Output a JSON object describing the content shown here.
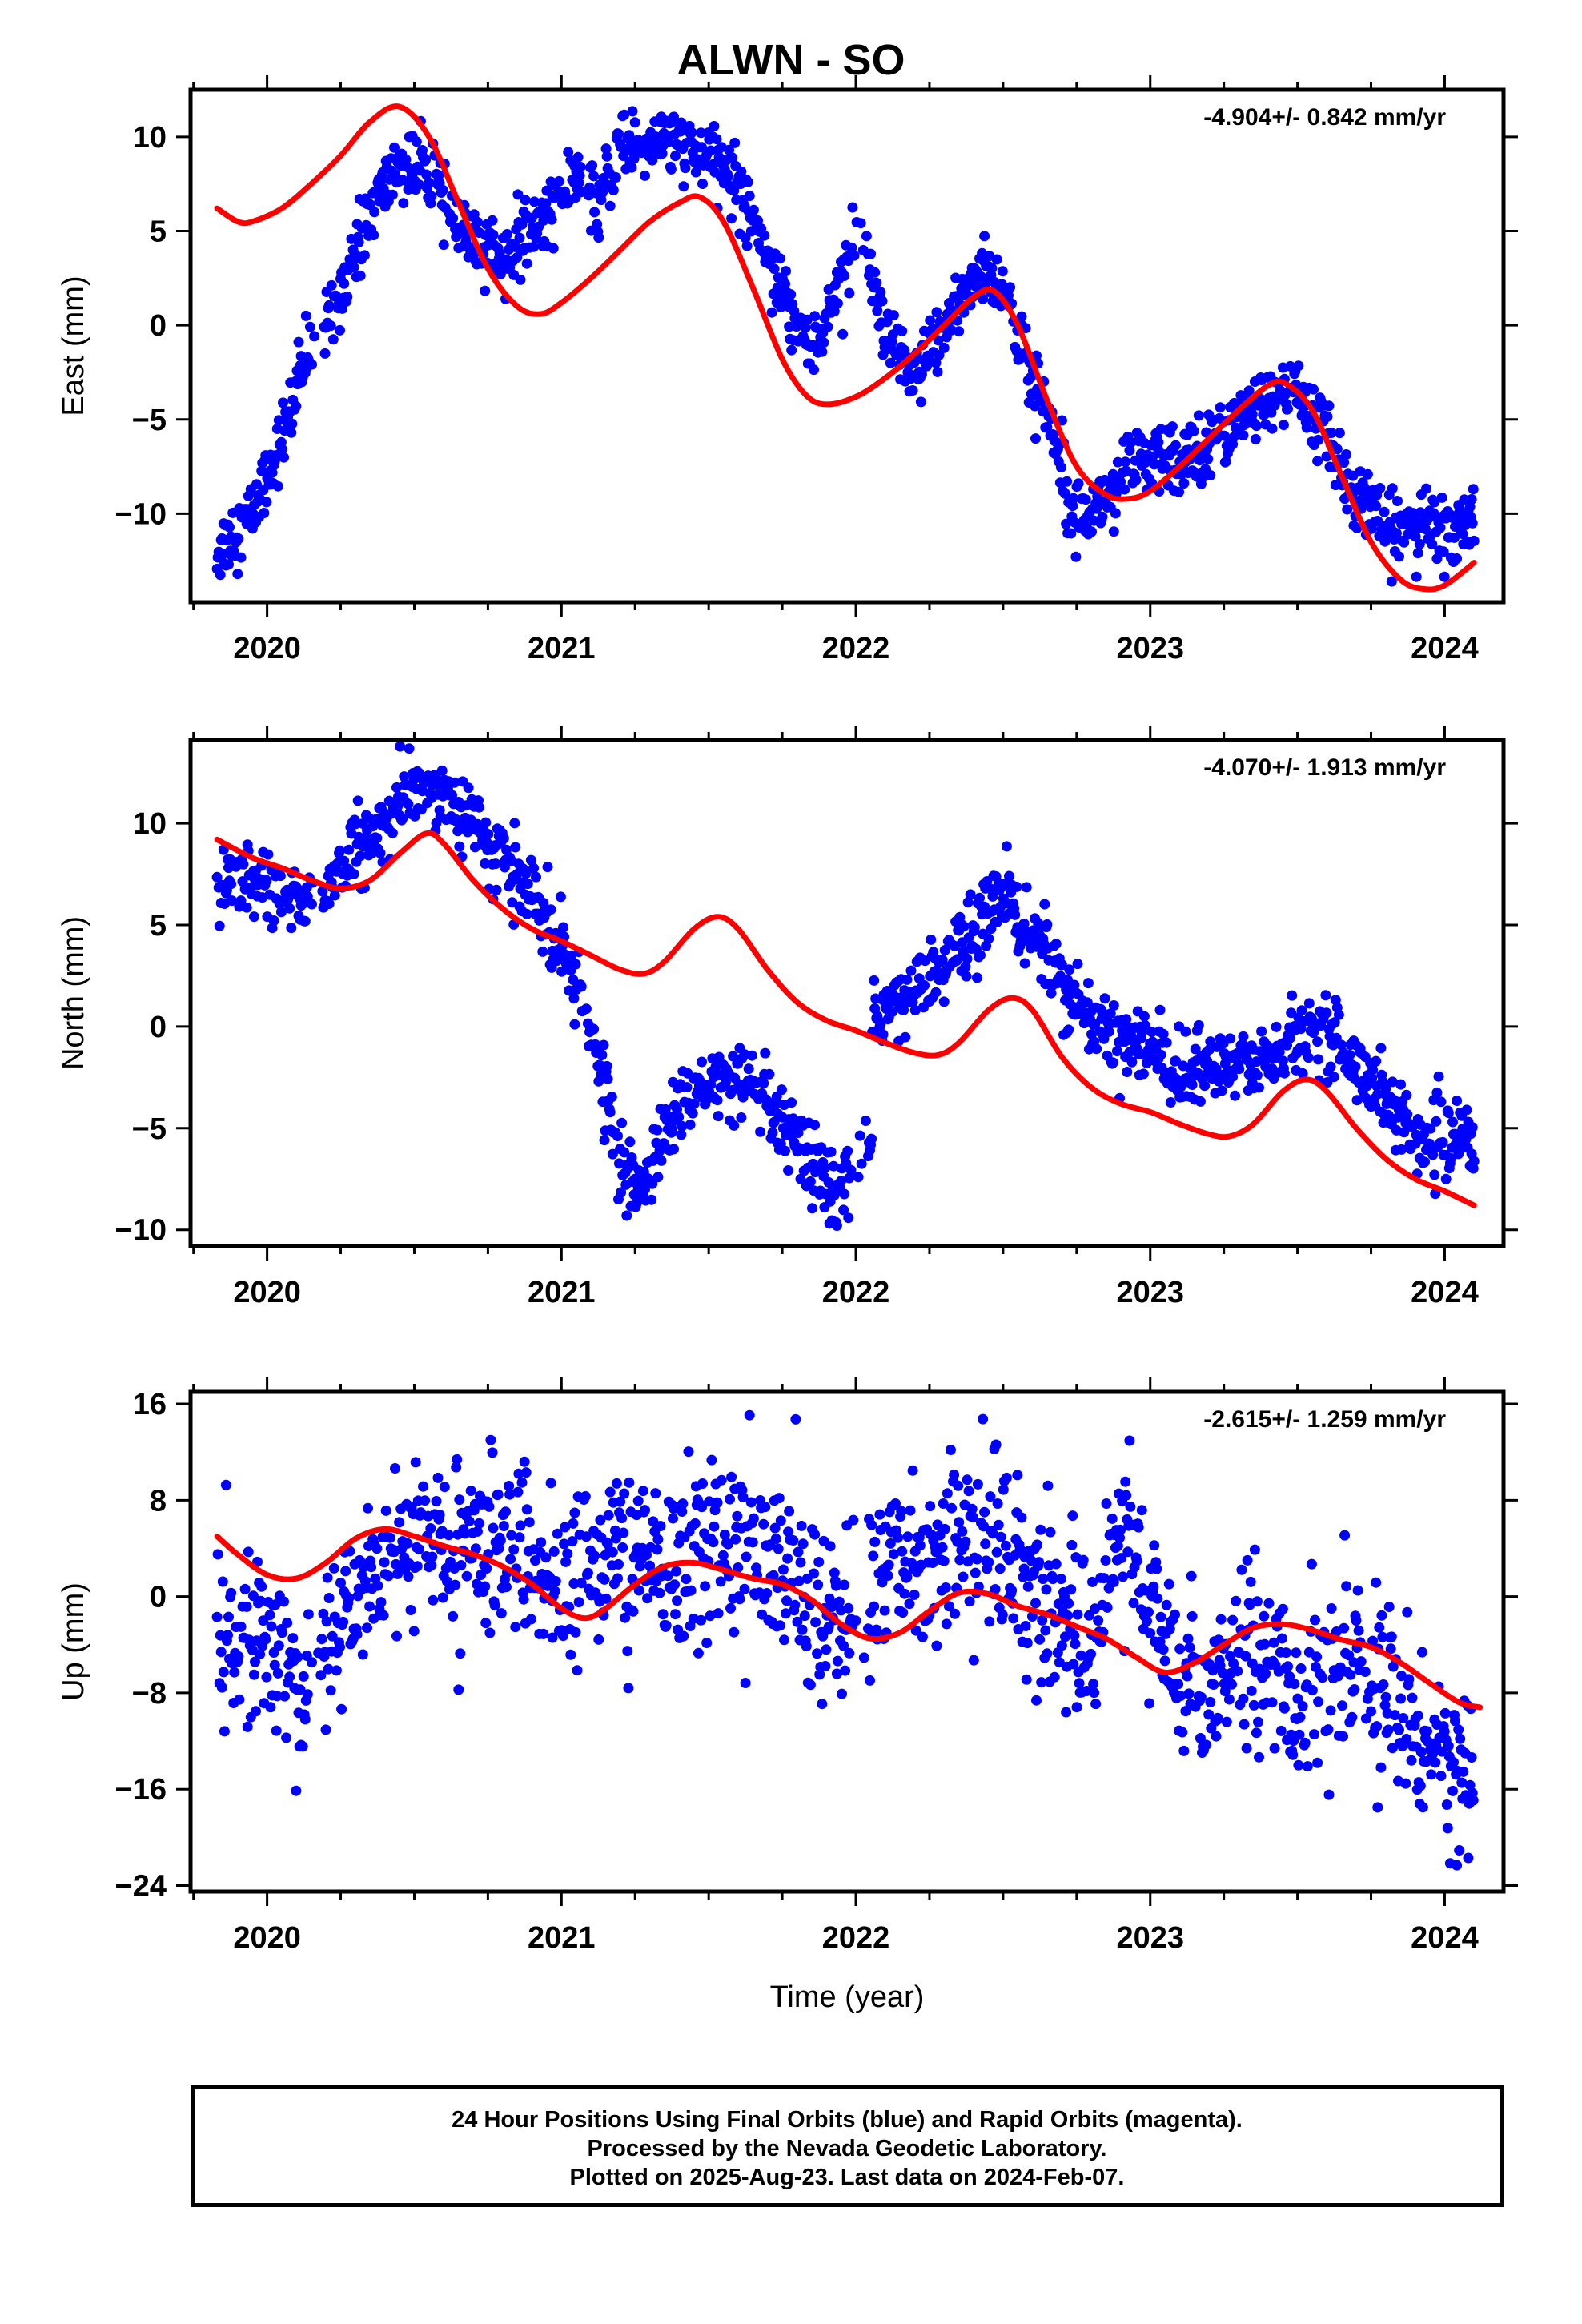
{
  "title": "ALWN - SO",
  "footer": {
    "line1": "24 Hour Positions Using Final Orbits (blue) and Rapid Orbits (magenta).",
    "line2": "Processed by the Nevada Geodetic Laboratory.",
    "line3": "Plotted on 2025-Aug-23. Last data on 2024-Feb-07."
  },
  "colors": {
    "data_points": "#0000ff",
    "fit_line": "#ff0000",
    "frame": "#000000"
  },
  "chart_data": [
    {
      "type": "scatter",
      "panel": "east",
      "ylabel": "East (mm)",
      "xlabel": "",
      "rate_text": "-4.904+/- 0.842 mm/yr",
      "xlim": [
        2019.74,
        2024.2
      ],
      "ylim": [
        -14.7,
        12.5
      ],
      "xticks": [
        2020,
        2021,
        2022,
        2023,
        2024
      ],
      "yticks": [
        10,
        5,
        0,
        -5,
        -10
      ],
      "ytick_labels": [
        "10",
        "5",
        "0",
        "−5",
        "−10"
      ],
      "observed_trend": [
        [
          2019.83,
          -12
        ],
        [
          2019.95,
          -10
        ],
        [
          2020.05,
          -6
        ],
        [
          2020.15,
          -1
        ],
        [
          2020.25,
          2
        ],
        [
          2020.35,
          6
        ],
        [
          2020.45,
          8.5
        ],
        [
          2020.55,
          8
        ],
        [
          2020.62,
          6
        ],
        [
          2020.7,
          4
        ],
        [
          2020.85,
          4
        ],
        [
          2020.95,
          6
        ],
        [
          2021.05,
          8
        ],
        [
          2021.12,
          6
        ],
        [
          2021.2,
          9.5
        ],
        [
          2021.35,
          10
        ],
        [
          2021.45,
          9
        ],
        [
          2021.55,
          8.5
        ],
        [
          2021.65,
          6
        ],
        [
          2021.72,
          3
        ],
        [
          2021.8,
          0
        ],
        [
          2021.88,
          -1
        ],
        [
          2021.95,
          3
        ],
        [
          2022.02,
          5
        ],
        [
          2022.1,
          -1
        ],
        [
          2022.2,
          -3
        ],
        [
          2022.3,
          0
        ],
        [
          2022.38,
          2
        ],
        [
          2022.45,
          3
        ],
        [
          2022.5,
          2
        ],
        [
          2022.6,
          -3
        ],
        [
          2022.68,
          -6
        ],
        [
          2022.73,
          -9
        ],
        [
          2022.8,
          -10
        ],
        [
          2022.9,
          -8
        ],
        [
          2023.0,
          -7
        ],
        [
          2023.1,
          -7.5
        ],
        [
          2023.2,
          -6
        ],
        [
          2023.3,
          -5
        ],
        [
          2023.4,
          -4
        ],
        [
          2023.5,
          -3.5
        ],
        [
          2023.6,
          -6
        ],
        [
          2023.7,
          -9
        ],
        [
          2023.8,
          -11
        ],
        [
          2023.9,
          -10.5
        ],
        [
          2024.0,
          -11
        ],
        [
          2024.1,
          -10
        ]
      ],
      "fit_curve": [
        [
          2019.83,
          6.2
        ],
        [
          2019.9,
          5.5
        ],
        [
          2019.95,
          5.5
        ],
        [
          2020.05,
          6.2
        ],
        [
          2020.15,
          7.5
        ],
        [
          2020.25,
          9
        ],
        [
          2020.35,
          10.8
        ],
        [
          2020.45,
          11.6
        ],
        [
          2020.55,
          10
        ],
        [
          2020.65,
          6.5
        ],
        [
          2020.75,
          3
        ],
        [
          2020.85,
          1
        ],
        [
          2020.93,
          0.6
        ],
        [
          2021.0,
          1.2
        ],
        [
          2021.1,
          2.5
        ],
        [
          2021.2,
          4
        ],
        [
          2021.3,
          5.5
        ],
        [
          2021.4,
          6.5
        ],
        [
          2021.47,
          6.8
        ],
        [
          2021.55,
          5.5
        ],
        [
          2021.65,
          2
        ],
        [
          2021.75,
          -1.8
        ],
        [
          2021.83,
          -3.7
        ],
        [
          2021.9,
          -4.2
        ],
        [
          2022.0,
          -3.8
        ],
        [
          2022.1,
          -2.8
        ],
        [
          2022.2,
          -1.5
        ],
        [
          2022.3,
          0
        ],
        [
          2022.4,
          1.5
        ],
        [
          2022.47,
          1.8
        ],
        [
          2022.55,
          0
        ],
        [
          2022.65,
          -4
        ],
        [
          2022.75,
          -7.5
        ],
        [
          2022.85,
          -9
        ],
        [
          2022.93,
          -9.2
        ],
        [
          2023.0,
          -8.8
        ],
        [
          2023.1,
          -7.5
        ],
        [
          2023.2,
          -6
        ],
        [
          2023.3,
          -4.5
        ],
        [
          2023.4,
          -3.2
        ],
        [
          2023.46,
          -3.1
        ],
        [
          2023.55,
          -4.5
        ],
        [
          2023.65,
          -8
        ],
        [
          2023.75,
          -11.5
        ],
        [
          2023.85,
          -13.5
        ],
        [
          2023.93,
          -14
        ],
        [
          2024.0,
          -13.8
        ],
        [
          2024.1,
          -12.6
        ]
      ]
    },
    {
      "type": "scatter",
      "panel": "north",
      "ylabel": "North (mm)",
      "xlabel": "",
      "rate_text": "-4.070+/- 1.913 mm/yr",
      "xlim": [
        2019.74,
        2024.2
      ],
      "ylim": [
        -10.8,
        14.1
      ],
      "xticks": [
        2020,
        2021,
        2022,
        2023,
        2024
      ],
      "yticks": [
        10,
        5,
        0,
        -5,
        -10
      ],
      "ytick_labels": [
        "10",
        "5",
        "0",
        "−5",
        "−10"
      ],
      "observed_trend": [
        [
          2019.83,
          6
        ],
        [
          2019.9,
          7.5
        ],
        [
          2020.0,
          7
        ],
        [
          2020.1,
          6
        ],
        [
          2020.2,
          7
        ],
        [
          2020.3,
          8.5
        ],
        [
          2020.4,
          10
        ],
        [
          2020.5,
          11.5
        ],
        [
          2020.55,
          12
        ],
        [
          2020.6,
          11.5
        ],
        [
          2020.7,
          10
        ],
        [
          2020.8,
          8
        ],
        [
          2020.9,
          6.5
        ],
        [
          2021.0,
          4
        ],
        [
          2021.05,
          2
        ],
        [
          2021.1,
          0
        ],
        [
          2021.15,
          -3
        ],
        [
          2021.2,
          -7
        ],
        [
          2021.25,
          -8
        ],
        [
          2021.3,
          -7.5
        ],
        [
          2021.35,
          -5
        ],
        [
          2021.4,
          -4
        ],
        [
          2021.5,
          -3
        ],
        [
          2021.6,
          -2.5
        ],
        [
          2021.7,
          -4
        ],
        [
          2021.8,
          -6
        ],
        [
          2021.9,
          -8
        ],
        [
          2021.95,
          -8
        ],
        [
          2022.05,
          -6
        ],
        [
          2022.06,
          1
        ],
        [
          2022.1,
          1
        ],
        [
          2022.2,
          2
        ],
        [
          2022.3,
          3
        ],
        [
          2022.4,
          4.5
        ],
        [
          2022.48,
          6.5
        ],
        [
          2022.52,
          7
        ],
        [
          2022.55,
          4
        ],
        [
          2022.6,
          5
        ],
        [
          2022.7,
          2
        ],
        [
          2022.8,
          0
        ],
        [
          2022.9,
          -0.5
        ],
        [
          2023.0,
          -1
        ],
        [
          2023.1,
          -2.5
        ],
        [
          2023.2,
          -2
        ],
        [
          2023.3,
          -2
        ],
        [
          2023.4,
          -1.5
        ],
        [
          2023.5,
          -0.5
        ],
        [
          2023.6,
          0
        ],
        [
          2023.7,
          -2
        ],
        [
          2023.8,
          -3.5
        ],
        [
          2023.9,
          -5.5
        ],
        [
          2024.0,
          -6
        ],
        [
          2024.05,
          -5
        ],
        [
          2024.1,
          -6
        ]
      ],
      "fit_curve": [
        [
          2019.83,
          9.2
        ],
        [
          2019.95,
          8.3
        ],
        [
          2020.05,
          7.8
        ],
        [
          2020.15,
          7.2
        ],
        [
          2020.25,
          6.8
        ],
        [
          2020.35,
          7.2
        ],
        [
          2020.45,
          8.5
        ],
        [
          2020.54,
          9.5
        ],
        [
          2020.6,
          9
        ],
        [
          2020.7,
          7.2
        ],
        [
          2020.8,
          5.8
        ],
        [
          2020.9,
          4.8
        ],
        [
          2021.0,
          4.2
        ],
        [
          2021.1,
          3.5
        ],
        [
          2021.2,
          2.8
        ],
        [
          2021.28,
          2.6
        ],
        [
          2021.35,
          3.2
        ],
        [
          2021.45,
          4.8
        ],
        [
          2021.53,
          5.4
        ],
        [
          2021.6,
          4.8
        ],
        [
          2021.7,
          2.8
        ],
        [
          2021.8,
          1.2
        ],
        [
          2021.9,
          0.3
        ],
        [
          2022.0,
          -0.2
        ],
        [
          2022.1,
          -0.8
        ],
        [
          2022.2,
          -1.3
        ],
        [
          2022.28,
          -1.4
        ],
        [
          2022.35,
          -0.8
        ],
        [
          2022.45,
          0.8
        ],
        [
          2022.53,
          1.4
        ],
        [
          2022.6,
          0.8
        ],
        [
          2022.7,
          -1.5
        ],
        [
          2022.8,
          -3
        ],
        [
          2022.9,
          -3.8
        ],
        [
          2023.0,
          -4.2
        ],
        [
          2023.1,
          -4.8
        ],
        [
          2023.2,
          -5.3
        ],
        [
          2023.27,
          -5.4
        ],
        [
          2023.35,
          -4.8
        ],
        [
          2023.45,
          -3.2
        ],
        [
          2023.53,
          -2.6
        ],
        [
          2023.6,
          -3.2
        ],
        [
          2023.7,
          -5
        ],
        [
          2023.8,
          -6.5
        ],
        [
          2023.9,
          -7.5
        ],
        [
          2024.0,
          -8.1
        ],
        [
          2024.1,
          -8.8
        ]
      ]
    },
    {
      "type": "scatter",
      "panel": "up",
      "ylabel": "Up (mm)",
      "xlabel": "Time (year)",
      "rate_text": "-2.615+/- 1.259 mm/yr",
      "xlim": [
        2019.74,
        2024.2
      ],
      "ylim": [
        -24.5,
        17
      ],
      "xticks": [
        2020,
        2021,
        2022,
        2023,
        2024
      ],
      "yticks": [
        16,
        8,
        0,
        -8,
        -16,
        -24
      ],
      "ytick_labels": [
        "16",
        "8",
        "0",
        "−8",
        "−16",
        "−24"
      ],
      "observed_trend": [
        [
          2019.83,
          -4
        ],
        [
          2019.9,
          -3
        ],
        [
          2020.0,
          -4
        ],
        [
          2020.1,
          -6
        ],
        [
          2020.2,
          -5
        ],
        [
          2020.3,
          0
        ],
        [
          2020.4,
          4
        ],
        [
          2020.5,
          5
        ],
        [
          2020.6,
          4
        ],
        [
          2020.7,
          5
        ],
        [
          2020.8,
          4
        ],
        [
          2020.9,
          3
        ],
        [
          2021.0,
          0
        ],
        [
          2021.1,
          2
        ],
        [
          2021.2,
          4
        ],
        [
          2021.3,
          2
        ],
        [
          2021.4,
          3
        ],
        [
          2021.5,
          5
        ],
        [
          2021.6,
          4
        ],
        [
          2021.7,
          3
        ],
        [
          2021.8,
          1
        ],
        [
          2021.9,
          -2
        ],
        [
          2022.0,
          -3
        ],
        [
          2022.1,
          2
        ],
        [
          2022.2,
          3
        ],
        [
          2022.3,
          4
        ],
        [
          2022.4,
          5
        ],
        [
          2022.5,
          4
        ],
        [
          2022.6,
          1
        ],
        [
          2022.7,
          -2
        ],
        [
          2022.8,
          -4
        ],
        [
          2022.9,
          6
        ],
        [
          2022.95,
          4
        ],
        [
          2023.0,
          -2
        ],
        [
          2023.1,
          -6
        ],
        [
          2023.2,
          -7
        ],
        [
          2023.3,
          -5
        ],
        [
          2023.4,
          -4
        ],
        [
          2023.5,
          -9
        ],
        [
          2023.6,
          -7
        ],
        [
          2023.7,
          -6
        ],
        [
          2023.8,
          -8
        ],
        [
          2023.9,
          -10
        ],
        [
          2024.0,
          -13
        ],
        [
          2024.1,
          -15
        ]
      ],
      "fit_curve": [
        [
          2019.83,
          5
        ],
        [
          2019.9,
          3.5
        ],
        [
          2020.0,
          1.8
        ],
        [
          2020.1,
          1.5
        ],
        [
          2020.2,
          2.8
        ],
        [
          2020.3,
          4.8
        ],
        [
          2020.4,
          5.6
        ],
        [
          2020.5,
          5
        ],
        [
          2020.6,
          4.2
        ],
        [
          2020.7,
          3.5
        ],
        [
          2020.8,
          2.5
        ],
        [
          2020.9,
          1
        ],
        [
          2021.0,
          -1
        ],
        [
          2021.08,
          -1.8
        ],
        [
          2021.15,
          -1
        ],
        [
          2021.25,
          1
        ],
        [
          2021.35,
          2.5
        ],
        [
          2021.45,
          2.8
        ],
        [
          2021.55,
          2.2
        ],
        [
          2021.65,
          1.5
        ],
        [
          2021.75,
          1
        ],
        [
          2021.85,
          -0.3
        ],
        [
          2021.95,
          -2.3
        ],
        [
          2022.05,
          -3.5
        ],
        [
          2022.15,
          -3
        ],
        [
          2022.25,
          -1.2
        ],
        [
          2022.35,
          0.3
        ],
        [
          2022.45,
          0.2
        ],
        [
          2022.55,
          -0.8
        ],
        [
          2022.65,
          -1.5
        ],
        [
          2022.75,
          -2.5
        ],
        [
          2022.85,
          -3.5
        ],
        [
          2022.95,
          -5
        ],
        [
          2023.05,
          -6.3
        ],
        [
          2023.15,
          -5.5
        ],
        [
          2023.25,
          -4
        ],
        [
          2023.35,
          -2.6
        ],
        [
          2023.45,
          -2.3
        ],
        [
          2023.55,
          -2.8
        ],
        [
          2023.65,
          -3.6
        ],
        [
          2023.75,
          -4.2
        ],
        [
          2023.85,
          -5.5
        ],
        [
          2023.95,
          -7.2
        ],
        [
          2024.05,
          -8.8
        ],
        [
          2024.12,
          -9.2
        ]
      ]
    }
  ]
}
